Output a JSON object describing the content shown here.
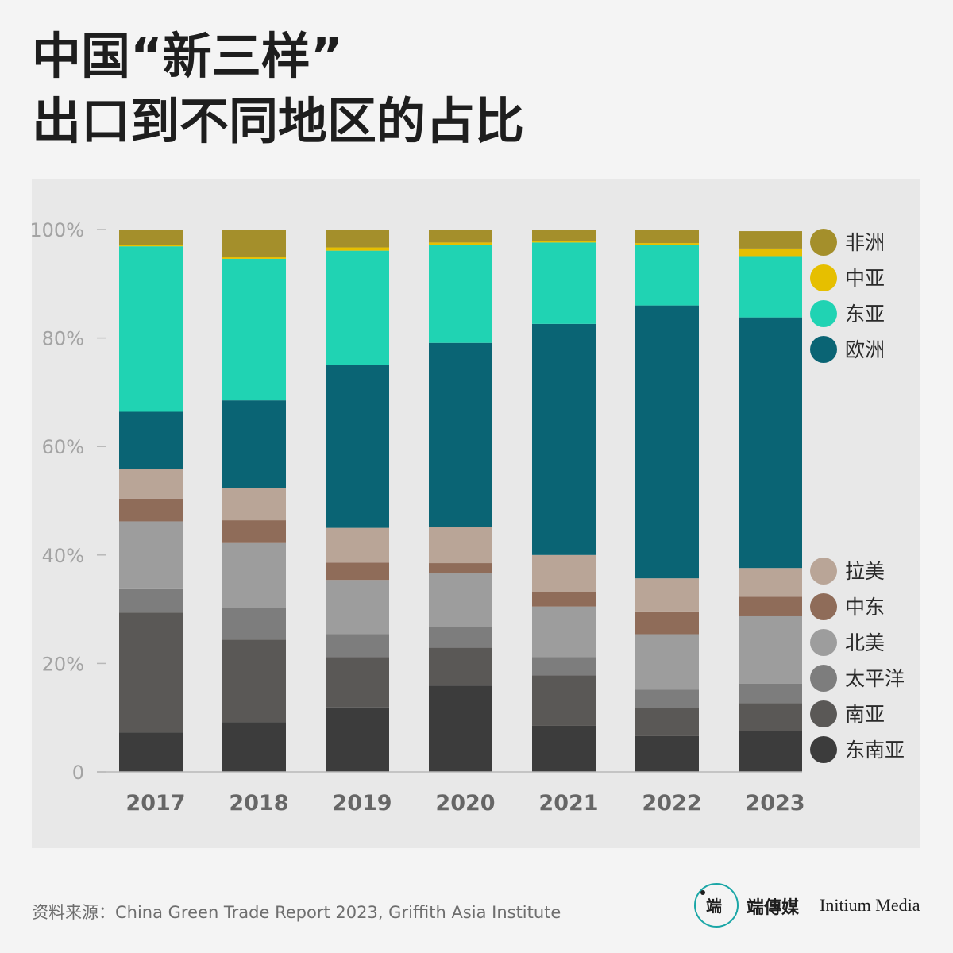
{
  "title_line1": "中国“新三样”",
  "title_line2": "出口到不同地区的占比",
  "source": "资料来源：China Green Trade Report 2023, Griffith Asia Institute",
  "logo": {
    "mark": "端",
    "cn": "端傳媒",
    "en": "Initium Media"
  },
  "chart_data": {
    "type": "bar",
    "stacked": true,
    "categories": [
      "2017",
      "2018",
      "2019",
      "2020",
      "2021",
      "2022",
      "2023"
    ],
    "y_ticks": [
      "0",
      "20%",
      "40%",
      "60%",
      "80%",
      "100%"
    ],
    "ylim": [
      0,
      100
    ],
    "grid": false,
    "legend_position": "right",
    "series": [
      {
        "name": "东南亚",
        "color": "#3c3c3c",
        "values": [
          7.3,
          9.2,
          11.9,
          15.9,
          8.5,
          6.6,
          7.5
        ]
      },
      {
        "name": "南亚",
        "color": "#5a5856",
        "values": [
          22.1,
          15.2,
          9.3,
          7.0,
          9.3,
          5.2,
          5.2
        ]
      },
      {
        "name": "太平洋",
        "color": "#7d7d7d",
        "values": [
          4.3,
          5.9,
          4.2,
          3.8,
          3.4,
          3.4,
          3.6
        ]
      },
      {
        "name": "北美",
        "color": "#9d9d9d",
        "values": [
          12.5,
          11.9,
          10.0,
          9.9,
          9.3,
          10.2,
          12.4
        ]
      },
      {
        "name": "中东",
        "color": "#8f6c59",
        "values": [
          4.2,
          4.2,
          3.2,
          1.9,
          2.6,
          4.2,
          3.6
        ]
      },
      {
        "name": "拉美",
        "color": "#b9a597",
        "values": [
          5.5,
          5.9,
          6.4,
          6.6,
          6.9,
          6.1,
          5.3
        ]
      },
      {
        "name": "欧洲",
        "color": "#0a6474",
        "values": [
          10.5,
          16.2,
          30.1,
          34.0,
          42.6,
          50.3,
          46.2
        ]
      },
      {
        "name": "东亚",
        "color": "#20d3b3",
        "values": [
          30.5,
          26.1,
          21.0,
          18.1,
          15.0,
          11.2,
          11.3
        ]
      },
      {
        "name": "中亚",
        "color": "#e6bf00",
        "values": [
          0.3,
          0.4,
          0.6,
          0.4,
          0.3,
          0.3,
          1.4
        ]
      },
      {
        "name": "非洲",
        "color": "#a48f2b",
        "values": [
          2.8,
          5.0,
          3.3,
          2.4,
          2.1,
          2.5,
          3.2
        ]
      }
    ]
  }
}
